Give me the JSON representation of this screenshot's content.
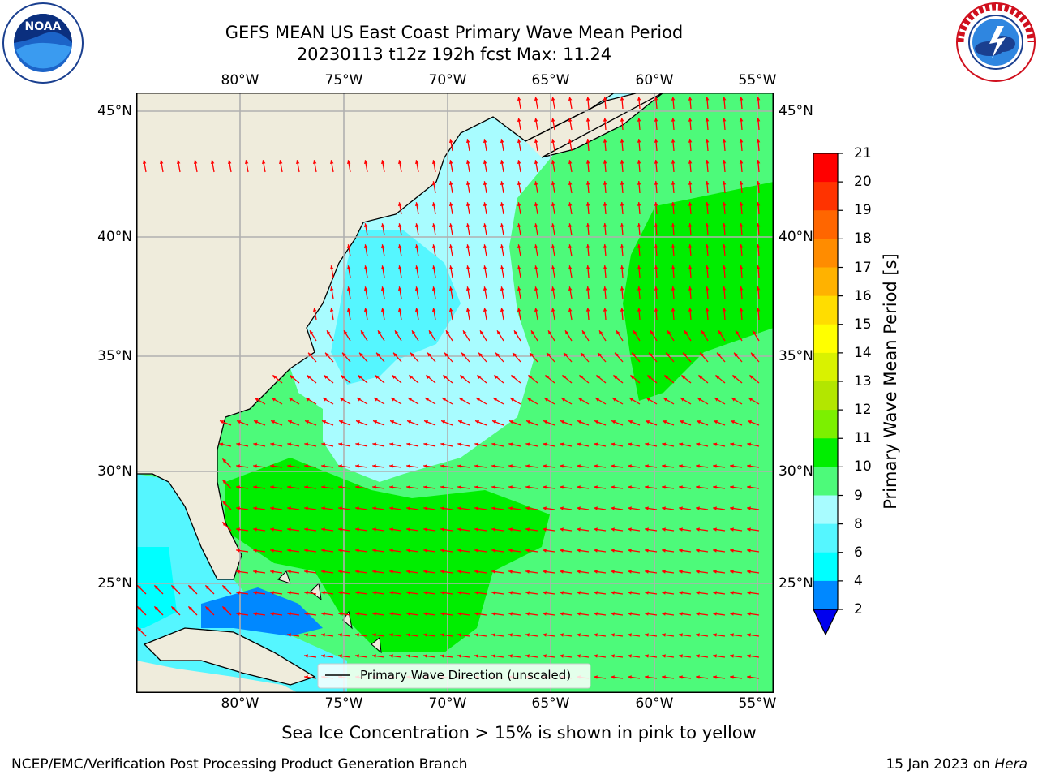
{
  "title": {
    "line1": "GEFS MEAN US East Coast Primary Wave Mean Period",
    "line2": "20230113 t12z 192h fcst   Max: 11.24"
  },
  "map": {
    "lon_ticks": [
      "80°W",
      "75°W",
      "70°W",
      "65°W",
      "60°W",
      "55°W"
    ],
    "lat_ticks": [
      "45°N",
      "40°N",
      "35°N",
      "30°N",
      "25°N"
    ],
    "legend_label": "Primary Wave Direction (unscaled)",
    "land_color": "#efecdc",
    "arrow_color": "#ff0000",
    "grid_color": "#b0b0b0"
  },
  "colorbar": {
    "title": "Primary Wave Mean Period [s]",
    "labels": [
      "21",
      "20",
      "19",
      "18",
      "17",
      "16",
      "15",
      "14",
      "13",
      "12",
      "11",
      "10",
      "9",
      "8",
      "6",
      "4",
      "2"
    ],
    "colors": [
      "#ff0000",
      "#ff3300",
      "#ff6600",
      "#ff8c00",
      "#ffb200",
      "#ffdd00",
      "#ffff00",
      "#d9f200",
      "#b3e600",
      "#7cf000",
      "#00ee00",
      "#4dfa7a",
      "#a8fcff",
      "#55f6ff",
      "#00ffff",
      "#0088ff",
      "#0000ee"
    ]
  },
  "subtitle": "Sea Ice Concentration > 15% is shown in pink to yellow",
  "footer": {
    "left": "NCEP/EMC/Verification Post Processing Product Generation Branch",
    "date": "15 Jan 2023 on ",
    "machine": "Hera"
  },
  "logos": {
    "left": "noaa-logo",
    "right": "nws-logo"
  }
}
